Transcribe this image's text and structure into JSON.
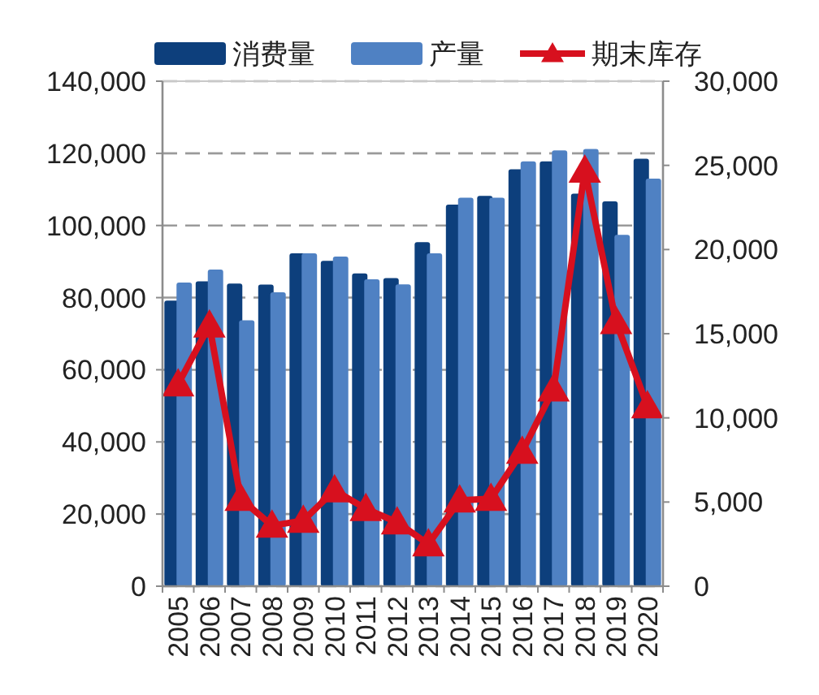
{
  "chart_data": {
    "type": "bar",
    "categories": [
      "2005",
      "2006",
      "2007",
      "2008",
      "2009",
      "2010",
      "2011",
      "2012",
      "2013",
      "2014",
      "2015",
      "2016",
      "2017",
      "2018",
      "2019",
      "2020"
    ],
    "series": [
      {
        "name": "消费量",
        "color": "#0d3f7c",
        "values": [
          79200,
          84500,
          83900,
          83600,
          92300,
          90200,
          86700,
          85400,
          95400,
          105800,
          108200,
          115600,
          117800,
          108800,
          106700,
          118500
        ]
      },
      {
        "name": "产量",
        "color": "#4f81c3",
        "values": [
          84200,
          87800,
          73700,
          81500,
          92300,
          91400,
          85100,
          83700,
          92300,
          107700,
          107700,
          117800,
          120800,
          121200,
          97400,
          113000
        ]
      },
      {
        "name": "期末库存",
        "type": "line",
        "axis": "y2",
        "color": "#d7101e",
        "marker": "triangle",
        "values": [
          12000,
          15500,
          5200,
          3600,
          3900,
          5700,
          4600,
          3800,
          2500,
          5100,
          5200,
          8000,
          11700,
          24700,
          15700,
          10700
        ]
      }
    ],
    "ylim": [
      0,
      140000
    ],
    "yticks": [
      {
        "value": 0,
        "label": "0"
      },
      {
        "value": 20000,
        "label": "20,000"
      },
      {
        "value": 40000,
        "label": "40,000"
      },
      {
        "value": 60000,
        "label": "60,000"
      },
      {
        "value": 80000,
        "label": "80,000"
      },
      {
        "value": 100000,
        "label": "100,000"
      },
      {
        "value": 120000,
        "label": "120,000"
      },
      {
        "value": 140000,
        "label": "140,000"
      }
    ],
    "y2lim": [
      0,
      30000
    ],
    "y2ticks": [
      {
        "value": 0,
        "label": "0"
      },
      {
        "value": 5000,
        "label": "5,000"
      },
      {
        "value": 10000,
        "label": "10,000"
      },
      {
        "value": 15000,
        "label": "15,000"
      },
      {
        "value": 20000,
        "label": "20,000"
      },
      {
        "value": 25000,
        "label": "25,000"
      },
      {
        "value": 30000,
        "label": "30,000"
      }
    ],
    "grid": "y",
    "legend": "top"
  }
}
